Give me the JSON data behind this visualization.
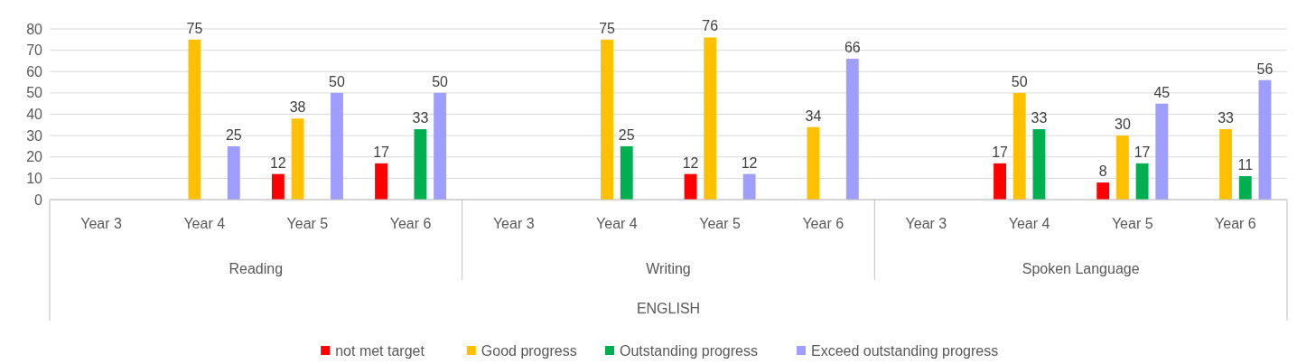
{
  "chart_data": {
    "type": "bar",
    "categories": [
      "Year 3",
      "Year 4",
      "Year 5",
      "Year 6",
      "Year 3",
      "Year 4",
      "Year 5",
      "Year 6",
      "Year 3",
      "Year 4",
      "Year 5",
      "Year 6"
    ],
    "series": [
      {
        "name": "not met target",
        "color": "#ff0000",
        "values": [
          null,
          null,
          12,
          17,
          null,
          null,
          12,
          null,
          null,
          17,
          8,
          null
        ]
      },
      {
        "name": "Good progress",
        "color": "#ffc000",
        "values": [
          null,
          75,
          38,
          null,
          null,
          75,
          76,
          34,
          null,
          50,
          30,
          33
        ]
      },
      {
        "name": "Outstanding progress",
        "color": "#00b050",
        "values": [
          null,
          null,
          null,
          33,
          null,
          25,
          null,
          null,
          null,
          33,
          17,
          11
        ]
      },
      {
        "name": "Exceed outstanding progress",
        "color": "#9e9eff",
        "values": [
          null,
          25,
          50,
          50,
          null,
          null,
          12,
          66,
          null,
          null,
          45,
          56
        ]
      }
    ],
    "annotations": [
      "Reading",
      "Writing",
      "Spoken Language",
      "ENGLISH"
    ],
    "ylim": [
      0,
      80
    ],
    "yticks": [
      0,
      10,
      20,
      30,
      40,
      50,
      60,
      70,
      80
    ],
    "grid": "y",
    "legend": "bottom",
    "data_labels": true
  }
}
